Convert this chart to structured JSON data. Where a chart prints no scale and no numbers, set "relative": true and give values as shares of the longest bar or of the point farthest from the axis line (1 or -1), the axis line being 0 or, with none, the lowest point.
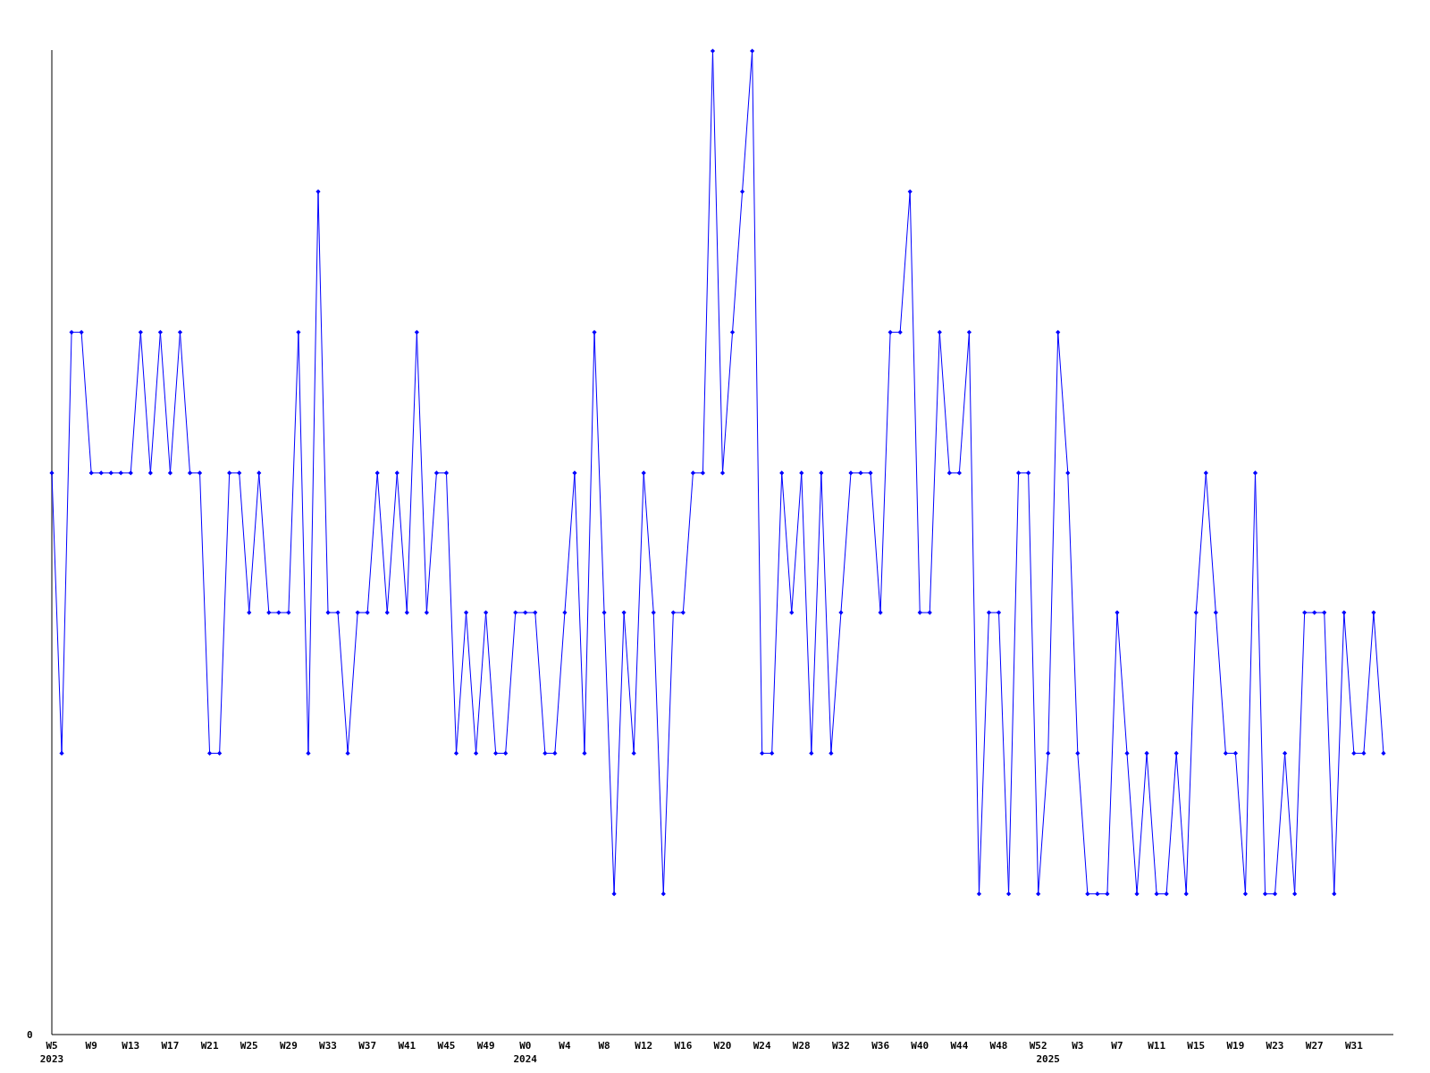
{
  "chart_data": {
    "type": "line",
    "relative": true,
    "marker": "diamond",
    "line_style": "solid",
    "annotations": [
      "0"
    ],
    "categories": [
      "W5\n2023",
      null,
      null,
      null,
      "W9",
      null,
      null,
      null,
      "W13",
      null,
      null,
      null,
      "W17",
      null,
      null,
      null,
      "W21",
      null,
      null,
      null,
      "W25",
      null,
      null,
      null,
      "W29",
      null,
      null,
      null,
      "W33",
      null,
      null,
      null,
      "W37",
      null,
      null,
      null,
      "W41",
      null,
      null,
      null,
      "W45",
      null,
      null,
      null,
      "W49",
      null,
      null,
      null,
      "W0\n2024",
      null,
      null,
      null,
      "W4",
      null,
      null,
      null,
      "W8",
      null,
      null,
      null,
      "W12",
      null,
      null,
      null,
      "W16",
      null,
      null,
      null,
      "W20",
      null,
      null,
      null,
      "W24",
      null,
      null,
      null,
      "W28",
      null,
      null,
      null,
      "W32",
      null,
      null,
      null,
      "W36",
      null,
      null,
      null,
      "W40",
      null,
      null,
      null,
      "W44",
      null,
      null,
      null,
      "W48",
      null,
      null,
      null,
      "W52",
      "\n2025",
      null,
      null,
      "W3",
      null,
      null,
      null,
      "W7",
      null,
      null,
      null,
      "W11",
      null,
      null,
      null,
      "W15",
      null,
      null,
      null,
      "W19",
      null,
      null,
      null,
      "W23",
      null,
      null,
      null,
      "W27",
      null,
      null,
      null,
      "W31",
      null,
      null,
      null
    ],
    "series": [
      {
        "color": "#0000ff",
        "values": [
          0.571,
          0.286,
          0.714,
          0.714,
          0.571,
          0.571,
          0.571,
          0.571,
          0.571,
          0.714,
          0.571,
          0.714,
          0.571,
          0.714,
          0.571,
          0.571,
          0.286,
          0.286,
          0.571,
          0.571,
          0.429,
          0.571,
          0.429,
          0.429,
          0.429,
          0.714,
          0.286,
          0.857,
          0.429,
          0.429,
          0.286,
          0.429,
          0.429,
          0.571,
          0.429,
          0.571,
          0.429,
          0.714,
          0.429,
          0.571,
          0.571,
          0.286,
          0.429,
          0.286,
          0.429,
          0.286,
          0.286,
          0.429,
          0.429,
          0.429,
          0.286,
          0.286,
          0.429,
          0.571,
          0.286,
          0.714,
          0.429,
          0.143,
          0.429,
          0.286,
          0.571,
          0.429,
          0.143,
          0.429,
          0.429,
          0.571,
          0.571,
          1,
          0.571,
          0.714,
          0.857,
          1,
          0.286,
          0.286,
          0.571,
          0.429,
          0.571,
          0.286,
          0.571,
          0.286,
          0.429,
          0.571,
          0.571,
          0.571,
          0.429,
          0.714,
          0.714,
          0.857,
          0.429,
          0.429,
          0.714,
          0.571,
          0.571,
          0.714,
          0.143,
          0.429,
          0.429,
          0.143,
          0.571,
          0.571,
          0.143,
          0.286,
          0.714,
          0.571,
          0.286,
          0.143,
          0.143,
          0.143,
          0.429,
          0.286,
          0.143,
          0.286,
          0.143,
          0.143,
          0.286,
          0.143,
          0.429,
          0.571,
          0.429,
          0.286,
          0.286,
          0.143,
          0.571,
          0.143,
          0.143,
          0.286,
          0.143,
          0.429,
          0.429,
          0.429,
          0.143,
          0.429,
          0.286,
          0.286,
          0.429,
          0.286
        ]
      }
    ]
  }
}
